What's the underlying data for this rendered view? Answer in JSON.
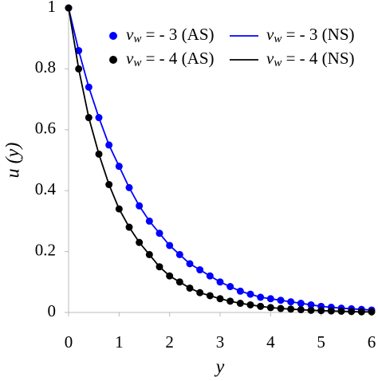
{
  "chart_data": {
    "type": "line",
    "x_label": "y",
    "y_label": "u (y)",
    "x": [
      0,
      0.2,
      0.4,
      0.6,
      0.8,
      1,
      1.2,
      1.4,
      1.6,
      1.8,
      2,
      2.2,
      2.4,
      2.6,
      2.8,
      3,
      3.2,
      3.4,
      3.6,
      3.8,
      4,
      4.2,
      4.4,
      4.6,
      4.8,
      5,
      5.2,
      5.4,
      5.6,
      5.8,
      6
    ],
    "series": [
      {
        "name": "vw = - 3 (AS)",
        "color": "#0000ff",
        "style": "markers",
        "values": [
          1,
          0.86,
          0.74,
          0.64,
          0.55,
          0.48,
          0.41,
          0.35,
          0.3,
          0.26,
          0.22,
          0.19,
          0.16,
          0.14,
          0.12,
          0.1,
          0.085,
          0.07,
          0.06,
          0.05,
          0.045,
          0.04,
          0.035,
          0.03,
          0.025,
          0.02,
          0.017,
          0.014,
          0.012,
          0.01,
          0.008
        ]
      },
      {
        "name": "vw = - 3 (NS)",
        "color": "#0000ff",
        "style": "line",
        "values": [
          1,
          0.86,
          0.74,
          0.64,
          0.55,
          0.48,
          0.41,
          0.35,
          0.3,
          0.26,
          0.22,
          0.19,
          0.16,
          0.14,
          0.12,
          0.1,
          0.085,
          0.07,
          0.06,
          0.05,
          0.045,
          0.04,
          0.035,
          0.03,
          0.025,
          0.02,
          0.017,
          0.014,
          0.012,
          0.01,
          0.008
        ]
      },
      {
        "name": "vw = - 4 (AS)",
        "color": "#000000",
        "style": "markers",
        "values": [
          1,
          0.8,
          0.64,
          0.52,
          0.42,
          0.34,
          0.28,
          0.23,
          0.19,
          0.15,
          0.12,
          0.1,
          0.08,
          0.065,
          0.055,
          0.045,
          0.037,
          0.03,
          0.025,
          0.02,
          0.016,
          0.013,
          0.011,
          0.009,
          0.007,
          0.006,
          0.005,
          0.004,
          0.003,
          0.002,
          0.002
        ]
      },
      {
        "name": "vw = - 4 (NS)",
        "color": "#000000",
        "style": "line",
        "values": [
          1,
          0.8,
          0.64,
          0.52,
          0.42,
          0.34,
          0.28,
          0.23,
          0.19,
          0.15,
          0.12,
          0.1,
          0.08,
          0.065,
          0.055,
          0.045,
          0.037,
          0.03,
          0.025,
          0.02,
          0.016,
          0.013,
          0.011,
          0.009,
          0.007,
          0.006,
          0.005,
          0.004,
          0.003,
          0.002,
          0.002
        ]
      }
    ],
    "xlim": [
      0,
      6
    ],
    "xticks": [
      0,
      1,
      2,
      3,
      4,
      5,
      6
    ],
    "ylim": [
      0,
      1
    ],
    "yticks": [
      0,
      0.2,
      0.4,
      0.6,
      0.8,
      1
    ]
  }
}
